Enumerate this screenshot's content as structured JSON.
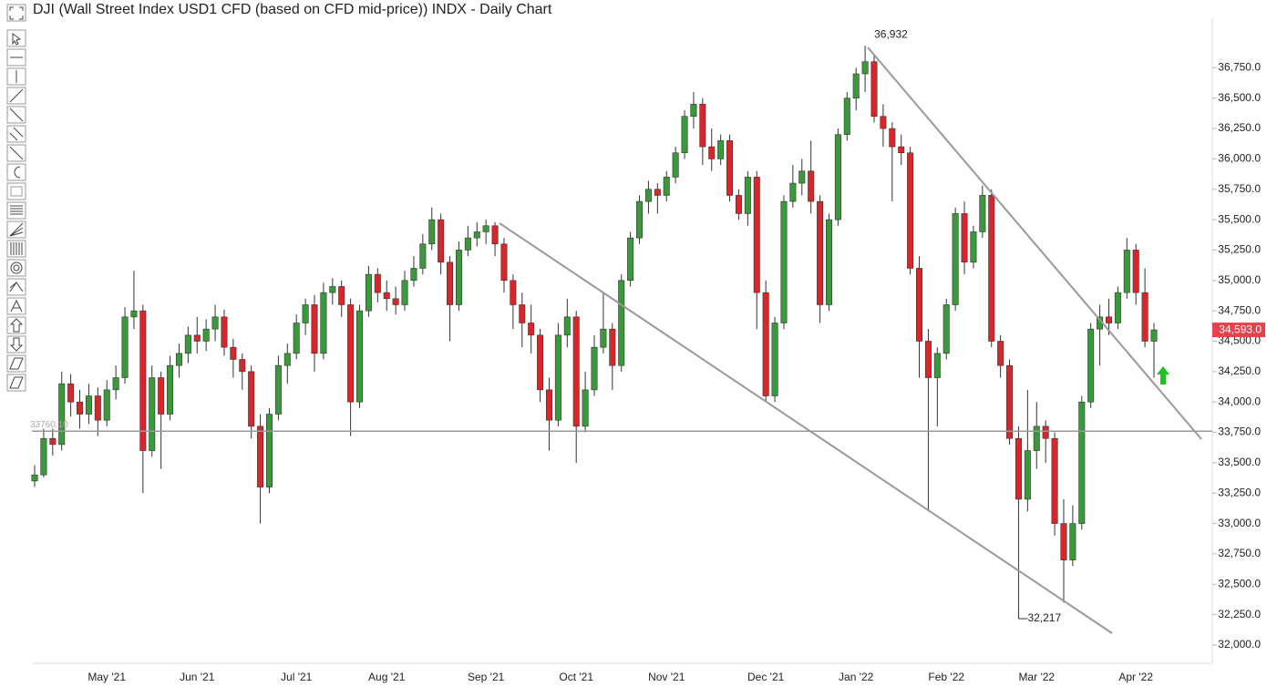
{
  "chart_data": {
    "type": "candlestick",
    "title": "DJI (Wall Street Index USD1 CFD (based on CFD mid-price)) INDX - Daily Chart",
    "up_color": "#3a9a3a",
    "down_color": "#d9262b",
    "categories": [
      null,
      null,
      null,
      null,
      null,
      null,
      null,
      null,
      "May '21",
      null,
      null,
      null,
      null,
      null,
      null,
      null,
      null,
      null,
      "Jun '21",
      null,
      null,
      null,
      null,
      null,
      null,
      null,
      null,
      null,
      null,
      "Jul '21",
      null,
      null,
      null,
      null,
      null,
      null,
      null,
      null,
      null,
      "Aug '21",
      null,
      null,
      null,
      null,
      null,
      null,
      null,
      null,
      null,
      null,
      "Sep '21",
      null,
      null,
      null,
      null,
      null,
      null,
      null,
      null,
      null,
      "Oct '21",
      null,
      null,
      null,
      null,
      null,
      null,
      null,
      null,
      null,
      "Nov '21",
      null,
      null,
      null,
      null,
      null,
      null,
      null,
      null,
      null,
      null,
      "Dec '21",
      null,
      null,
      null,
      null,
      null,
      null,
      null,
      null,
      null,
      "Jan '22",
      null,
      null,
      null,
      null,
      null,
      null,
      null,
      null,
      null,
      "Feb '22",
      null,
      null,
      null,
      null,
      null,
      null,
      null,
      null,
      null,
      "Mar '22",
      null,
      null,
      null,
      null,
      null,
      null,
      null,
      null,
      null,
      null,
      "Apr '22",
      null,
      null
    ],
    "open": [
      33350,
      33400,
      33700,
      33650,
      34150,
      34000,
      33900,
      34050,
      33850,
      34100,
      34200,
      34700,
      34750,
      33600,
      34200,
      33900,
      34300,
      34400,
      34550,
      34500,
      34600,
      34700,
      34450,
      34350,
      34250,
      33800,
      33300,
      33900,
      34300,
      34400,
      34650,
      34800,
      34400,
      34900,
      34950,
      34800,
      34000,
      34750,
      35050,
      34900,
      34850,
      34800,
      35000,
      35100,
      35300,
      35500,
      35150,
      34800,
      35250,
      35350,
      35400,
      35450,
      35300,
      35000,
      34800,
      34650,
      34550,
      34100,
      33850,
      34550,
      34700,
      33800,
      34100,
      34450,
      34600,
      34300,
      35000,
      35350,
      35650,
      35750,
      35700,
      35850,
      36050,
      36350,
      36450,
      36100,
      36000,
      36150,
      35700,
      35550,
      35850,
      34900,
      34050,
      34650,
      35650,
      35800,
      35900,
      35650,
      34800,
      35500,
      36200,
      36500,
      36700,
      36800,
      36350,
      36250,
      36100,
      36050,
      35100,
      34500,
      34200,
      34400,
      34800,
      35550,
      35150,
      35400,
      35700,
      34500,
      34300,
      33700,
      33200,
      33600,
      33800,
      33700,
      33000,
      32700,
      33000,
      34000,
      34600,
      34700,
      34650,
      34900,
      35250,
      34900,
      34500
    ],
    "high": [
      33480,
      33780,
      33780,
      34250,
      34230,
      34100,
      34150,
      34120,
      34180,
      34300,
      34780,
      35080,
      34800,
      34300,
      34250,
      34380,
      34480,
      34620,
      34700,
      34680,
      34800,
      34760,
      34520,
      34400,
      34300,
      33900,
      33950,
      34380,
      34480,
      34720,
      34850,
      34880,
      34980,
      35020,
      35000,
      34850,
      34800,
      35120,
      35100,
      35000,
      34950,
      35080,
      35200,
      35380,
      35600,
      35550,
      35200,
      35320,
      35450,
      35480,
      35500,
      35480,
      35350,
      35050,
      34900,
      34800,
      34600,
      34200,
      34650,
      34850,
      34750,
      34250,
      34550,
      34900,
      34650,
      35050,
      35400,
      35700,
      35820,
      35800,
      35900,
      36100,
      36400,
      36550,
      36500,
      36250,
      36200,
      36200,
      35750,
      35900,
      35900,
      35000,
      34700,
      35700,
      35950,
      36000,
      36150,
      35700,
      35550,
      36250,
      36550,
      36750,
      36932,
      36850,
      36450,
      36300,
      36200,
      36100,
      35200,
      34600,
      34450,
      34850,
      35600,
      35650,
      35450,
      35780,
      35750,
      34550,
      34350,
      33800,
      34100,
      34000,
      33850,
      33750,
      33200,
      33150,
      34050,
      34650,
      34800,
      34850,
      34950,
      35350,
      35300,
      35100,
      34650
    ],
    "low": [
      33300,
      33380,
      33560,
      33600,
      33880,
      33780,
      33820,
      33720,
      33800,
      34020,
      34150,
      34600,
      33250,
      33550,
      33450,
      33850,
      34200,
      34320,
      34400,
      34420,
      34500,
      34380,
      34200,
      34100,
      33700,
      33000,
      33250,
      33850,
      34150,
      34350,
      34550,
      34250,
      34350,
      34800,
      34700,
      33720,
      33950,
      34700,
      34820,
      34750,
      34720,
      34750,
      34950,
      35050,
      35250,
      35050,
      34500,
      34750,
      35200,
      35280,
      35300,
      35200,
      34900,
      34600,
      34450,
      34400,
      34000,
      33600,
      33800,
      34450,
      33500,
      33750,
      34050,
      34400,
      34100,
      34250,
      34950,
      35300,
      35550,
      35550,
      35650,
      35800,
      36000,
      36250,
      35950,
      35900,
      35950,
      35650,
      35500,
      35450,
      34600,
      34000,
      34000,
      34600,
      35600,
      35700,
      35550,
      34650,
      34750,
      35450,
      36150,
      36400,
      36550,
      36300,
      36100,
      35650,
      35950,
      35050,
      34200,
      33100,
      33800,
      34350,
      34750,
      35050,
      35100,
      35350,
      34450,
      34200,
      33650,
      32217,
      33100,
      33450,
      33500,
      32900,
      32350,
      32650,
      32950,
      33950,
      34300,
      34550,
      34600,
      34850,
      34800,
      34450,
      34200
    ],
    "close": [
      33400,
      33700,
      33650,
      34150,
      34000,
      33900,
      34050,
      33850,
      34100,
      34200,
      34700,
      34750,
      33600,
      34200,
      33900,
      34300,
      34400,
      34550,
      34500,
      34600,
      34700,
      34450,
      34350,
      34250,
      33800,
      33300,
      33900,
      34300,
      34400,
      34650,
      34800,
      34400,
      34900,
      34950,
      34800,
      34000,
      34750,
      35050,
      34900,
      34850,
      34800,
      35000,
      35100,
      35300,
      35500,
      35150,
      34800,
      35250,
      35350,
      35400,
      35450,
      35300,
      35000,
      34800,
      34650,
      34550,
      34100,
      33850,
      34550,
      34700,
      33800,
      34100,
      34450,
      34600,
      34300,
      35000,
      35350,
      35650,
      35750,
      35700,
      35850,
      36050,
      36350,
      36450,
      36100,
      36000,
      36150,
      35700,
      35550,
      35850,
      34900,
      34050,
      34650,
      35650,
      35800,
      35900,
      35650,
      34800,
      35500,
      36200,
      36500,
      36700,
      36800,
      36350,
      36250,
      36100,
      36050,
      35100,
      34500,
      34200,
      34400,
      34800,
      35550,
      35150,
      35400,
      35700,
      34500,
      34300,
      33700,
      33200,
      33600,
      33800,
      33700,
      33000,
      32700,
      33000,
      34000,
      34600,
      34700,
      34650,
      34900,
      35250,
      34900,
      34500,
      34593
    ],
    "ylim": [
      31850,
      37120
    ],
    "yticks": [
      {
        "value": 32000,
        "label": "32,000.0"
      },
      {
        "value": 32250,
        "label": "32,250.0"
      },
      {
        "value": 32500,
        "label": "32,500.0"
      },
      {
        "value": 32750,
        "label": "32,750.0"
      },
      {
        "value": 33000,
        "label": "33,000.0"
      },
      {
        "value": 33250,
        "label": "33,250.0"
      },
      {
        "value": 33500,
        "label": "33,500.0"
      },
      {
        "value": 33750,
        "label": "33,750.0"
      },
      {
        "value": 34000,
        "label": "34,000.0"
      },
      {
        "value": 34250,
        "label": "34,250.0"
      },
      {
        "value": 34500,
        "label": "34,500.0"
      },
      {
        "value": 34750,
        "label": "34,750.0"
      },
      {
        "value": 35000,
        "label": "35,000.0"
      },
      {
        "value": 35250,
        "label": "35,250.0"
      },
      {
        "value": 35500,
        "label": "35,500.0"
      },
      {
        "value": 35750,
        "label": "35,750.0"
      },
      {
        "value": 36000,
        "label": "36,000.0"
      },
      {
        "value": 36250,
        "label": "36,250.0"
      },
      {
        "value": 36500,
        "label": "36,500.0"
      },
      {
        "value": 36750,
        "label": "36,750.0"
      }
    ],
    "annotations": [
      {
        "value": 36932,
        "label": "36,932"
      },
      {
        "value": 32217,
        "label": "32,217"
      }
    ],
    "horizontal_line": {
      "value": 33760,
      "label": "33760.10"
    },
    "last_price": {
      "value": 34593,
      "label": "34,593.0"
    }
  }
}
